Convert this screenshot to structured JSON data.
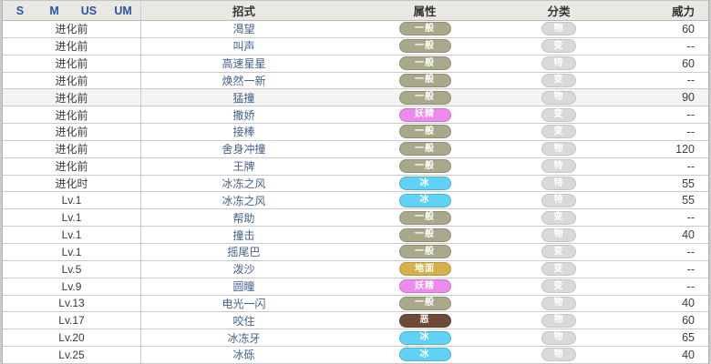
{
  "page": {
    "outer_background": "#c9c9c9"
  },
  "table": {
    "headers": {
      "games": [
        "S",
        "M",
        "US",
        "UM"
      ],
      "move": "招式",
      "type": "属性",
      "category": "分类",
      "power": "威力"
    },
    "colors": {
      "header_bg": "#e9e8e3",
      "header_game_link": "#2b57a5",
      "move_link": "#44618c",
      "row_highlight_bg": "#f4f4f2",
      "category_badge_bg": "#d9d9d9",
      "type_colors": {
        "一般": "#a8a88a",
        "妖精": "#ee8aee",
        "冰": "#5fd2f6",
        "地面": "#d4b24a",
        "恶": "#6d4b38"
      }
    },
    "rows": [
      {
        "level": "进化前",
        "move": "渴望",
        "type": "一般",
        "category": "物",
        "power": "60",
        "highlight": false
      },
      {
        "level": "进化前",
        "move": "叫声",
        "type": "一般",
        "category": "变",
        "power": "--",
        "highlight": false
      },
      {
        "level": "进化前",
        "move": "高速星星",
        "type": "一般",
        "category": "特",
        "power": "60",
        "highlight": false
      },
      {
        "level": "进化前",
        "move": "焕然一新",
        "type": "一般",
        "category": "变",
        "power": "--",
        "highlight": false
      },
      {
        "level": "进化前",
        "move": "猛撞",
        "type": "一般",
        "category": "物",
        "power": "90",
        "highlight": true
      },
      {
        "level": "进化前",
        "move": "撒娇",
        "type": "妖精",
        "category": "变",
        "power": "--",
        "highlight": false
      },
      {
        "level": "进化前",
        "move": "接棒",
        "type": "一般",
        "category": "变",
        "power": "--",
        "highlight": false
      },
      {
        "level": "进化前",
        "move": "舍身冲撞",
        "type": "一般",
        "category": "物",
        "power": "120",
        "highlight": false
      },
      {
        "level": "进化前",
        "move": "王牌",
        "type": "一般",
        "category": "特",
        "power": "--",
        "highlight": false
      },
      {
        "level": "进化时",
        "move": "冰冻之风",
        "type": "冰",
        "category": "特",
        "power": "55",
        "highlight": false
      },
      {
        "level": "Lv.1",
        "move": "冰冻之风",
        "type": "冰",
        "category": "特",
        "power": "55",
        "highlight": false
      },
      {
        "level": "Lv.1",
        "move": "帮助",
        "type": "一般",
        "category": "变",
        "power": "--",
        "highlight": false
      },
      {
        "level": "Lv.1",
        "move": "撞击",
        "type": "一般",
        "category": "物",
        "power": "40",
        "highlight": false
      },
      {
        "level": "Lv.1",
        "move": "摇尾巴",
        "type": "一般",
        "category": "变",
        "power": "--",
        "highlight": false
      },
      {
        "level": "Lv.5",
        "move": "泼沙",
        "type": "地面",
        "category": "变",
        "power": "--",
        "highlight": false
      },
      {
        "level": "Lv.9",
        "move": "圆瞳",
        "type": "妖精",
        "category": "变",
        "power": "--",
        "highlight": false
      },
      {
        "level": "Lv.13",
        "move": "电光一闪",
        "type": "一般",
        "category": "物",
        "power": "40",
        "highlight": false
      },
      {
        "level": "Lv.17",
        "move": "咬住",
        "type": "恶",
        "category": "物",
        "power": "60",
        "highlight": false
      },
      {
        "level": "Lv.20",
        "move": "冰冻牙",
        "type": "冰",
        "category": "物",
        "power": "65",
        "highlight": false
      },
      {
        "level": "Lv.25",
        "move": "冰砾",
        "type": "冰",
        "category": "物",
        "power": "40",
        "highlight": false
      }
    ]
  }
}
